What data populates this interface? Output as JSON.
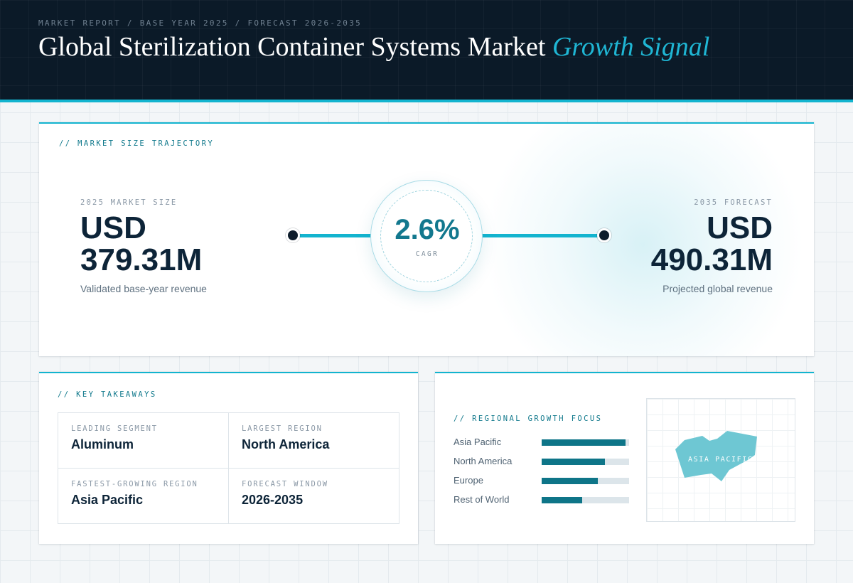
{
  "header": {
    "breadcrumb": "MARKET REPORT / BASE YEAR 2025 / FORECAST 2026-2035",
    "title_main": "Global Sterilization Container Systems Market",
    "title_accent": "Growth Signal"
  },
  "trajectory": {
    "section_label": "// MARKET SIZE TRAJECTORY",
    "start": {
      "label": "2025 MARKET SIZE",
      "value_line1": "USD",
      "value_line2": "379.31M",
      "description": "Validated base-year revenue"
    },
    "cagr": {
      "value": "2.6%",
      "label": "CAGR"
    },
    "end": {
      "label": "2035 FORECAST",
      "value_line1": "USD",
      "value_line2": "490.31M",
      "description": "Projected global revenue"
    }
  },
  "takeaways": {
    "section_label": "// KEY TAKEAWAYS",
    "items": [
      {
        "label": "LEADING SEGMENT",
        "value": "Aluminum"
      },
      {
        "label": "LARGEST REGION",
        "value": "North America"
      },
      {
        "label": "FASTEST-GROWING REGION",
        "value": "Asia Pacific"
      },
      {
        "label": "FORECAST WINDOW",
        "value": "2026-2035"
      }
    ]
  },
  "regional": {
    "section_label": "// REGIONAL GROWTH FOCUS",
    "bars": [
      {
        "label": "Asia Pacific",
        "level": 0.96
      },
      {
        "label": "North America",
        "level": 0.72
      },
      {
        "label": "Europe",
        "level": 0.64
      },
      {
        "label": "Rest of World",
        "level": 0.46
      }
    ],
    "map_label": "ASIA PACIFIC"
  },
  "colors": {
    "accent": "#13b4cf",
    "bar_fill": "#0e7588",
    "header_bg": "#0b1a28",
    "map_region": "#6ec7d3"
  }
}
